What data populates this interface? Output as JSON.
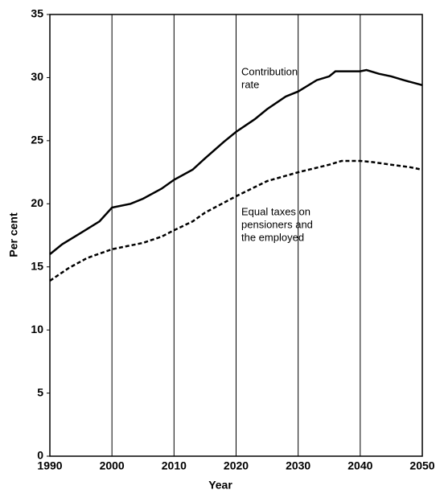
{
  "chart_data": {
    "type": "line",
    "xlabel": "Year",
    "ylabel": "Per cent",
    "xlim": [
      1990,
      2050
    ],
    "xticks": [
      1990,
      2000,
      2010,
      2020,
      2030,
      2040,
      2050
    ],
    "ylim": [
      0,
      35
    ],
    "yticks": [
      0,
      5,
      10,
      15,
      20,
      25,
      30,
      35
    ],
    "grid": "x",
    "series": [
      {
        "color": "#000000",
        "dash": "solid",
        "x": [
          1990,
          1992,
          1995,
          1998,
          2000,
          2003,
          2005,
          2008,
          2010,
          2013,
          2015,
          2018,
          2020,
          2023,
          2025,
          2028,
          2030,
          2033,
          2035,
          2036,
          2038,
          2040,
          2041,
          2043,
          2045,
          2047,
          2050
        ],
        "values": [
          16.0,
          16.8,
          17.7,
          18.6,
          19.7,
          20.0,
          20.4,
          21.2,
          21.9,
          22.7,
          23.6,
          24.9,
          25.7,
          26.7,
          27.5,
          28.5,
          28.9,
          29.8,
          30.1,
          30.5,
          30.5,
          30.5,
          30.6,
          30.3,
          30.1,
          29.8,
          29.4
        ]
      },
      {
        "color": "#000000",
        "dash": "dashed",
        "x": [
          1990,
          1993,
          1996,
          2000,
          2005,
          2008,
          2010,
          2013,
          2015,
          2020,
          2025,
          2030,
          2035,
          2037,
          2040,
          2042,
          2045,
          2048,
          2050
        ],
        "values": [
          13.9,
          14.9,
          15.7,
          16.4,
          16.9,
          17.4,
          17.9,
          18.6,
          19.3,
          20.6,
          21.8,
          22.5,
          23.1,
          23.4,
          23.4,
          23.3,
          23.1,
          22.9,
          22.7
        ]
      }
    ],
    "annotations": [
      {
        "lines": [
          "Contribution",
          "rate"
        ]
      },
      {
        "lines": [
          "Equal taxes on",
          "pensioners and",
          "the employed"
        ]
      }
    ]
  }
}
